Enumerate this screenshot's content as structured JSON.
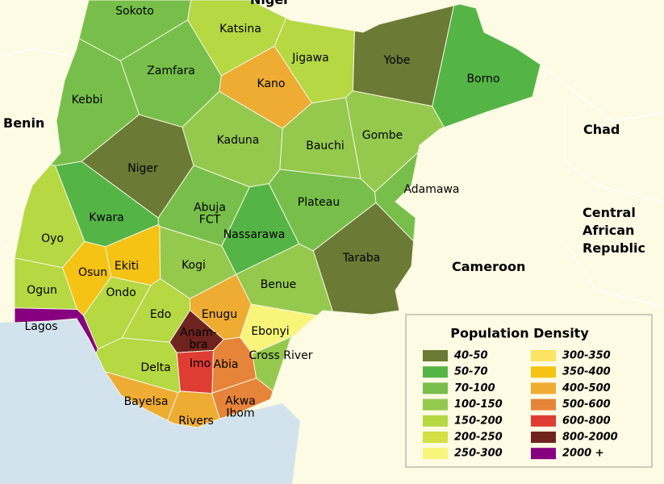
{
  "map": {
    "countries": [
      [
        "Niger"
      ],
      [
        "Benin"
      ],
      [
        "Chad"
      ],
      [
        "Central",
        "African",
        "Republic"
      ],
      [
        "Cameroon"
      ]
    ],
    "states": [
      {
        "label": [
          "Sokoto"
        ],
        "color": "#77bf4a"
      },
      {
        "label": [
          "Katsina"
        ],
        "color": "#b5d843"
      },
      {
        "label": [
          "Zamfara"
        ],
        "color": "#77bf4a"
      },
      {
        "label": [
          "Kebbi"
        ],
        "color": "#77bf4a"
      },
      {
        "label": [
          "Kano"
        ],
        "color": "#eeac33"
      },
      {
        "label": [
          "Jigawa"
        ],
        "color": "#b5d843"
      },
      {
        "label": [
          "Yobe"
        ],
        "color": "#6b7a34"
      },
      {
        "label": [
          "Borno"
        ],
        "color": "#55b446"
      },
      {
        "label": [
          "Niger"
        ],
        "color": "#6b7a34"
      },
      {
        "label": [
          "Kaduna"
        ],
        "color": "#95c94e"
      },
      {
        "label": [
          "Bauchi"
        ],
        "color": "#95c94e"
      },
      {
        "label": [
          "Gombe"
        ],
        "color": "#95c94e"
      },
      {
        "label": [
          "Adamawa"
        ],
        "color": "#77bf4a"
      },
      {
        "label": [
          "Kwara"
        ],
        "color": "#55b446"
      },
      {
        "label": [
          "Abuja",
          "FCT"
        ],
        "color": "#77bf4a"
      },
      {
        "label": [
          "Nassarawa"
        ],
        "color": "#55b446"
      },
      {
        "label": [
          "Plateau"
        ],
        "color": "#77bf4a"
      },
      {
        "label": [
          "Taraba"
        ],
        "color": "#6b7a34"
      },
      {
        "label": [
          "Oyo"
        ],
        "color": "#b5d843"
      },
      {
        "label": [
          "Osun"
        ],
        "color": "#f4c313"
      },
      {
        "label": [
          "Ekiti"
        ],
        "color": "#f4c313"
      },
      {
        "label": [
          "Kogi"
        ],
        "color": "#95c94e"
      },
      {
        "label": [
          "Benue"
        ],
        "color": "#95c94e"
      },
      {
        "label": [
          "Ogun"
        ],
        "color": "#b5d843"
      },
      {
        "label": [
          "Ondo"
        ],
        "color": "#b5d843"
      },
      {
        "label": [
          "Lagos"
        ],
        "color": "#86007f"
      },
      {
        "label": [
          "Edo"
        ],
        "color": "#b5d843"
      },
      {
        "label": [
          "Enugu"
        ],
        "color": "#eeac33"
      },
      {
        "label": [
          "Ebonyi"
        ],
        "color": "#f8f57a"
      },
      {
        "label": [
          "Anam-",
          "bra"
        ],
        "color": "#6e231f"
      },
      {
        "label": [
          "Imo"
        ],
        "color": "#df3c34"
      },
      {
        "label": [
          "Abia"
        ],
        "color": "#e6843a"
      },
      {
        "label": [
          "Cross River"
        ],
        "color": "#95c94e"
      },
      {
        "label": [
          "Delta"
        ],
        "color": "#b5d843"
      },
      {
        "label": [
          "Akwa",
          "Ibom"
        ],
        "color": "#e6843a"
      },
      {
        "label": [
          "Bayelsa"
        ],
        "color": "#eeac33"
      },
      {
        "label": [
          "Rivers"
        ],
        "color": "#eeac33"
      }
    ],
    "legend": {
      "title": "Population Density",
      "items": [
        {
          "label": "40-50",
          "color": "#6b7a34"
        },
        {
          "label": "50-70",
          "color": "#55b446"
        },
        {
          "label": "70-100",
          "color": "#77bf4a"
        },
        {
          "label": "100-150",
          "color": "#95c94e"
        },
        {
          "label": "150-200",
          "color": "#b5d843"
        },
        {
          "label": "200-250",
          "color": "#d2e044"
        },
        {
          "label": "250-300",
          "color": "#f8f57a"
        },
        {
          "label": "300-350",
          "color": "#fbe461"
        },
        {
          "label": "350-400",
          "color": "#f4c313"
        },
        {
          "label": "400-500",
          "color": "#eeac33"
        },
        {
          "label": "500-600",
          "color": "#e6843a"
        },
        {
          "label": "600-800",
          "color": "#df3c34"
        },
        {
          "label": "800-2000",
          "color": "#6e231f"
        },
        {
          "label": "2000 +",
          "color": "#86007f"
        }
      ]
    }
  }
}
